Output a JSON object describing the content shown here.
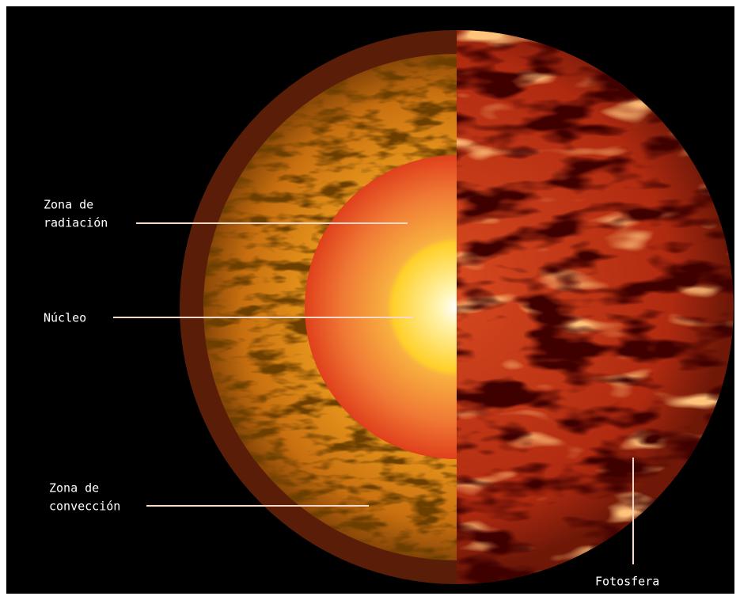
{
  "labels": [
    {
      "lines": [
        "Zona de",
        "radiación"
      ]
    },
    {
      "lines": [
        "Núcleo"
      ]
    },
    {
      "lines": [
        "Zona de",
        "convección"
      ]
    },
    {
      "lines": [
        "Fotosfera"
      ]
    }
  ]
}
